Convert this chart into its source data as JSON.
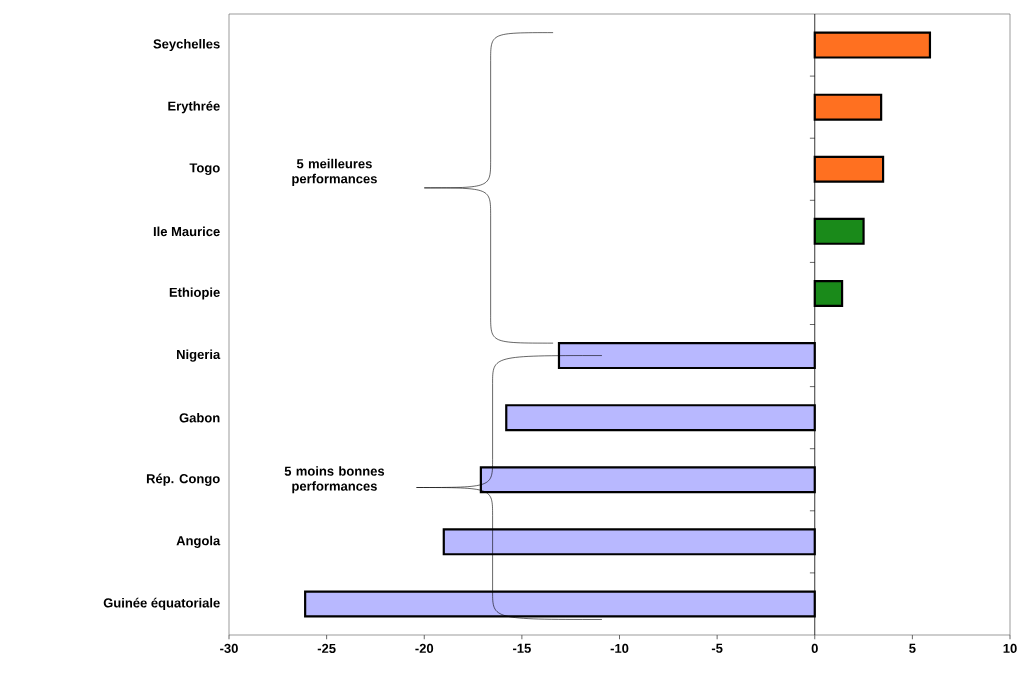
{
  "chart_data": {
    "type": "bar",
    "orientation": "horizontal",
    "categories": [
      "Seychelles",
      "Erythrée",
      "Togo",
      "Ile Maurice",
      "Ethiopie",
      "Nigeria",
      "Gabon",
      "Rép. Congo",
      "Angola",
      "Guinée équatoriale"
    ],
    "values": [
      5.9,
      3.4,
      3.5,
      2.5,
      1.4,
      -13.1,
      -15.8,
      -17.1,
      -19.0,
      -26.1
    ],
    "colors": [
      "#ff7020",
      "#ff7020",
      "#ff7020",
      "#1a8a1a",
      "#1a8a1a",
      "#b8b8ff",
      "#b8b8ff",
      "#b8b8ff",
      "#b8b8ff",
      "#b8b8ff"
    ],
    "xlim": [
      -30,
      10
    ],
    "xticks": [
      -30,
      -25,
      -20,
      -15,
      -10,
      -5,
      0,
      5,
      10
    ],
    "annotations": [
      "5 meilleures performances",
      "5 moins bonnes performances"
    ]
  }
}
